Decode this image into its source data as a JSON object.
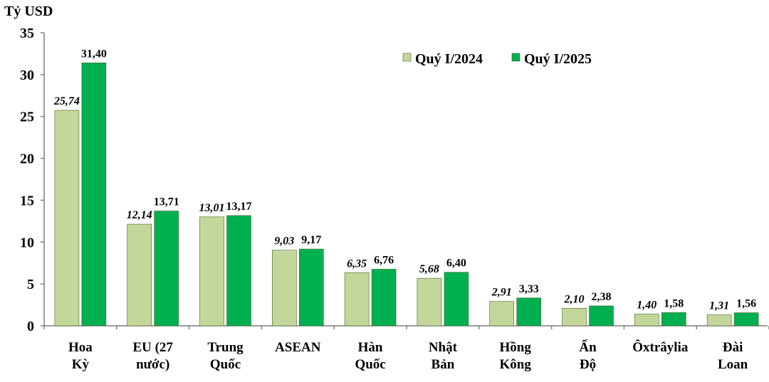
{
  "chart_data": {
    "type": "bar",
    "ylabel": "Tỷ USD",
    "ylim": [
      0,
      35
    ],
    "yticks": [
      "0",
      "5",
      "10",
      "15",
      "20",
      "25",
      "30",
      "35"
    ],
    "grid": false,
    "legend_position": "top-right",
    "categories": [
      [
        "Hoa",
        "Kỳ"
      ],
      [
        "EU (27",
        "nước)"
      ],
      [
        "Trung",
        "Quốc"
      ],
      [
        "ASEAN"
      ],
      [
        "Hàn",
        "Quốc"
      ],
      [
        "Nhật",
        "Bản"
      ],
      [
        "Hồng",
        "Kông"
      ],
      [
        "Ấn",
        "Độ"
      ],
      [
        "Ôxtrâylia"
      ],
      [
        "Đài",
        "Loan"
      ]
    ],
    "series": [
      {
        "name": "Quý I/2024",
        "color": "#c4d79b",
        "label_style": "italic",
        "values": [
          25.74,
          12.14,
          13.01,
          9.03,
          6.35,
          5.68,
          2.91,
          2.1,
          1.4,
          1.31
        ],
        "labels": [
          "25,74",
          "12,14",
          "13,01",
          "9,03",
          "6,35",
          "5,68",
          "2,91",
          "2,10",
          "1,40",
          "1,31"
        ]
      },
      {
        "name": "Quý I/2025",
        "color": "#00b050",
        "label_style": "normal",
        "values": [
          31.4,
          13.71,
          13.17,
          9.17,
          6.76,
          6.4,
          3.33,
          2.38,
          1.58,
          1.56
        ],
        "labels": [
          "31,40",
          "13,71",
          "13,17",
          "9,17",
          "6,76",
          "6,40",
          "3,33",
          "2,38",
          "1,58",
          "1,56"
        ]
      }
    ]
  }
}
